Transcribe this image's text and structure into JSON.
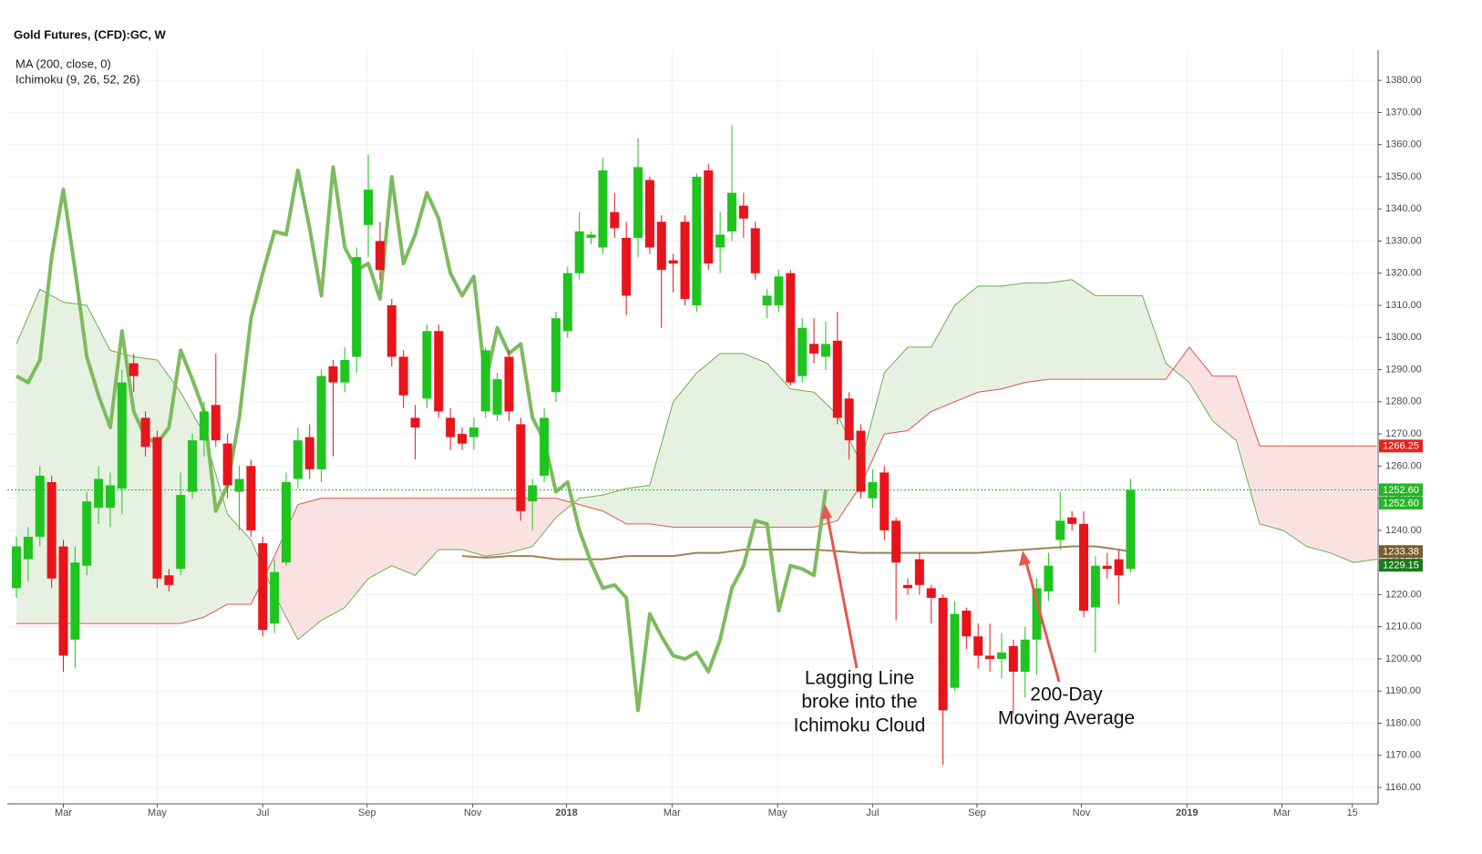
{
  "chart_data": {
    "type": "candlestick",
    "title": "Gold Futures, (CFD):GC, W",
    "indicators": [
      "MA (200, close, 0)",
      "Ichimoku (9, 26, 52, 26)"
    ],
    "up_color": "#1fc41f",
    "down_color": "#e8141b",
    "open": [
      1222,
      1231,
      1238,
      1255,
      1235,
      1206,
      1229,
      1247,
      1247,
      1253,
      1292,
      1275,
      1269,
      1226,
      1228,
      1252,
      1268,
      1279,
      1267,
      1252,
      1260,
      1236,
      1211,
      1230,
      1256,
      1269,
      1259,
      1291,
      1286,
      1294,
      1335,
      1330,
      1310,
      1294,
      1275,
      1281,
      1302,
      1275,
      1270,
      1269,
      1277,
      1276,
      1294,
      1273,
      1249,
      1257,
      1283,
      1302,
      1320,
      1331,
      1328,
      1339,
      1331,
      1331,
      1349,
      1336,
      1324,
      1336,
      1310,
      1352,
      1328,
      1333,
      1341,
      1334,
      1310,
      1310,
      1320,
      1288,
      1298,
      1294,
      1299,
      1281,
      1271,
      1250,
      1258,
      1243,
      1223,
      1231,
      1222,
      1219,
      1191,
      1215,
      1207,
      1201,
      1200,
      1204,
      1196,
      1206,
      1221,
      1237,
      1244,
      1242,
      1216,
      1229,
      1231,
      1228
    ],
    "high": [
      1238,
      1241,
      1260,
      1257,
      1237,
      1235,
      1252,
      1260,
      1258,
      1290,
      1295,
      1277,
      1271,
      1228,
      1258,
      1270,
      1280,
      1295,
      1270,
      1260,
      1262,
      1238,
      1231,
      1258,
      1272,
      1273,
      1290,
      1293,
      1297,
      1328,
      1357,
      1336,
      1312,
      1296,
      1279,
      1304,
      1304,
      1278,
      1272,
      1275,
      1297,
      1289,
      1296,
      1275,
      1256,
      1278,
      1308,
      1322,
      1339,
      1333,
      1356,
      1345,
      1336,
      1362,
      1350,
      1338,
      1326,
      1338,
      1351,
      1354,
      1339,
      1366,
      1345,
      1336,
      1315,
      1321,
      1321,
      1306,
      1306,
      1305,
      1308,
      1283,
      1273,
      1259,
      1260,
      1244,
      1225,
      1233,
      1223,
      1220,
      1218,
      1216,
      1211,
      1211,
      1208,
      1206,
      1210,
      1225,
      1233,
      1252,
      1246,
      1246,
      1232,
      1233,
      1234,
      1256
    ],
    "low": [
      1219,
      1224,
      1235,
      1222,
      1196,
      1197,
      1226,
      1242,
      1241,
      1245,
      1283,
      1263,
      1222,
      1221,
      1226,
      1250,
      1263,
      1266,
      1250,
      1240,
      1238,
      1207,
      1208,
      1229,
      1253,
      1256,
      1255,
      1263,
      1283,
      1289,
      1325,
      1318,
      1291,
      1278,
      1262,
      1278,
      1275,
      1265,
      1265,
      1265,
      1275,
      1274,
      1274,
      1243,
      1240,
      1255,
      1280,
      1300,
      1318,
      1329,
      1326,
      1331,
      1307,
      1325,
      1326,
      1303,
      1314,
      1310,
      1308,
      1321,
      1320,
      1330,
      1331,
      1318,
      1306,
      1308,
      1285,
      1286,
      1292,
      1290,
      1273,
      1262,
      1250,
      1247,
      1237,
      1212,
      1220,
      1220,
      1211,
      1167,
      1190,
      1203,
      1197,
      1196,
      1194,
      1183,
      1188,
      1195,
      1218,
      1234,
      1240,
      1213,
      1202,
      1225,
      1217,
      1227
    ],
    "close": [
      1235,
      1238,
      1257,
      1225,
      1201,
      1230,
      1249,
      1256,
      1254,
      1286,
      1288,
      1266,
      1225,
      1223,
      1251,
      1268,
      1277,
      1268,
      1254,
      1256,
      1240,
      1209,
      1227,
      1255,
      1268,
      1259,
      1288,
      1286,
      1293,
      1325,
      1346,
      1321,
      1294,
      1282,
      1272,
      1302,
      1277,
      1269,
      1267,
      1272,
      1296,
      1287,
      1277,
      1246,
      1254,
      1275,
      1306,
      1320,
      1333,
      1332,
      1352,
      1334,
      1313,
      1353,
      1328,
      1321,
      1323,
      1312,
      1350,
      1323,
      1332,
      1345,
      1337,
      1320,
      1313,
      1319,
      1286,
      1303,
      1295,
      1298,
      1275,
      1268,
      1252,
      1255,
      1240,
      1230,
      1222,
      1223,
      1219,
      1184,
      1214,
      1207,
      1201,
      1200,
      1202,
      1196,
      1206,
      1222,
      1229,
      1243,
      1242,
      1215,
      1229,
      1228,
      1226,
      1252.6
    ],
    "xlim": [
      -0.78,
      116.1
    ],
    "xticks": [
      {
        "value": 4.0,
        "label": "Mar"
      },
      {
        "value": 12.0,
        "label": "May"
      },
      {
        "value": 21.0,
        "label": "Jul"
      },
      {
        "value": 29.9,
        "label": "Sep"
      },
      {
        "value": 38.9,
        "label": "Nov"
      },
      {
        "value": 46.9,
        "label": "2018"
      },
      {
        "value": 55.9,
        "label": "Mar"
      },
      {
        "value": 64.9,
        "label": "May"
      },
      {
        "value": 73.0,
        "label": "Jul"
      },
      {
        "value": 81.9,
        "label": "Sep"
      },
      {
        "value": 90.8,
        "label": "Nov"
      },
      {
        "value": 99.8,
        "label": "2019"
      },
      {
        "value": 107.9,
        "label": "Mar"
      },
      {
        "value": 113.9,
        "label": "15"
      }
    ],
    "ylim": [
      1154.9,
      1389.4
    ],
    "yticks": [
      {
        "value": 1160,
        "label": "1160.00"
      },
      {
        "value": 1170,
        "label": "1170.00"
      },
      {
        "value": 1180,
        "label": "1180.00"
      },
      {
        "value": 1190,
        "label": "1190.00"
      },
      {
        "value": 1200,
        "label": "1200.00"
      },
      {
        "value": 1210,
        "label": "1210.00"
      },
      {
        "value": 1220,
        "label": "1220.00"
      },
      {
        "value": 1230,
        "label": "1230.00"
      },
      {
        "value": 1240,
        "label": "1240.00"
      },
      {
        "value": 1250,
        "label": "1250.00"
      },
      {
        "value": 1260,
        "label": "1260.00"
      },
      {
        "value": 1270,
        "label": "1270.00"
      },
      {
        "value": 1280,
        "label": "1280.00"
      },
      {
        "value": 1290,
        "label": "1290.00"
      },
      {
        "value": 1300,
        "label": "1300.00"
      },
      {
        "value": 1310,
        "label": "1310.00"
      },
      {
        "value": 1320,
        "label": "1320.00"
      },
      {
        "value": 1330,
        "label": "1330.00"
      },
      {
        "value": 1340,
        "label": "1340.00"
      },
      {
        "value": 1350,
        "label": "1350.00"
      },
      {
        "value": 1360,
        "label": "1360.00"
      },
      {
        "value": 1370,
        "label": "1370.00"
      },
      {
        "value": 1380,
        "label": "1380.00"
      }
    ],
    "grid": true,
    "last_price_line": true,
    "lagging_line": {
      "shift": 26,
      "color": "#7dbb5e"
    },
    "moving_average": {
      "color": "#a0825a",
      "x": [
        38,
        40,
        42,
        44,
        46,
        48,
        50,
        52,
        54,
        56,
        58,
        60,
        62,
        64,
        66,
        68,
        70,
        72,
        74,
        76,
        78,
        80,
        82,
        84,
        86,
        88,
        90,
        92,
        94,
        95
      ],
      "values": [
        1232,
        1231.5,
        1232,
        1232,
        1231,
        1231,
        1231,
        1232,
        1232,
        1232,
        1233,
        1233,
        1234,
        1234,
        1234,
        1234,
        1233.5,
        1233,
        1233,
        1233,
        1233,
        1233,
        1233,
        1233.5,
        1234,
        1234.5,
        1235,
        1235,
        1234,
        1233.38
      ]
    },
    "cloud": {
      "span_a_color": "#6ab04c",
      "span_b_color": "#e0554f",
      "bull_fill": "#e6f1e2",
      "bear_fill": "#fbe2e2",
      "x": [
        0,
        2,
        4,
        6,
        8,
        10,
        12,
        14,
        16,
        18,
        20,
        22,
        24,
        26,
        28,
        30,
        32,
        34,
        36,
        38,
        40,
        42,
        44,
        46,
        48,
        50,
        52,
        54,
        56,
        58,
        60,
        62,
        64,
        66,
        68,
        70,
        72,
        74,
        76,
        78,
        80,
        82,
        84,
        86,
        88,
        90,
        92,
        94,
        96,
        98,
        100,
        102,
        104,
        106,
        108,
        110,
        112,
        114,
        116
      ],
      "span_a": [
        1298,
        1315,
        1311,
        1310,
        1296,
        1294,
        1293,
        1283,
        1270,
        1245,
        1237,
        1220,
        1206,
        1212,
        1216,
        1225,
        1229,
        1226,
        1234,
        1234,
        1232,
        1233,
        1235,
        1244,
        1250,
        1251,
        1253,
        1254,
        1280,
        1289,
        1295,
        1295,
        1292,
        1284,
        1283,
        1276,
        1261,
        1289,
        1297,
        1297,
        1310,
        1316,
        1316,
        1317,
        1317,
        1318,
        1313,
        1313,
        1313,
        1292,
        1286,
        1274,
        1268,
        1242,
        1240,
        1235,
        1233,
        1230,
        1231
      ],
      "span_b": [
        1211,
        1211,
        1211,
        1211,
        1211,
        1211,
        1211,
        1211,
        1213,
        1217,
        1217,
        1232,
        1248,
        1250,
        1250,
        1250,
        1250,
        1250,
        1250,
        1250,
        1250,
        1250,
        1250,
        1250,
        1248,
        1246,
        1242,
        1242,
        1241,
        1241,
        1241,
        1241,
        1241,
        1241,
        1241,
        1243,
        1254,
        1270,
        1271,
        1277,
        1280,
        1283,
        1284,
        1286,
        1287,
        1287,
        1287,
        1287,
        1287,
        1287,
        1297,
        1288,
        1288,
        1266.25,
        1266.25,
        1266.25,
        1266.25,
        1266.25,
        1266.25
      ]
    },
    "price_tags": [
      {
        "value": 1266.25,
        "label": "1266.25",
        "color": "#e8211d"
      },
      {
        "value": 1252.6,
        "label": "1252.60",
        "color": "#25b525"
      },
      {
        "value": 1252.6,
        "label": "1252.60",
        "color": "#25b525"
      },
      {
        "value": 1233.38,
        "label": "1233.38",
        "color": "#7b5a2e"
      },
      {
        "value": 1229.15,
        "label": "1229.15",
        "color": "#1a7a1a"
      }
    ],
    "annotations": [
      {
        "text": [
          "Lagging Line",
          "broke into the",
          "Ichimoku Cloud"
        ]
      },
      {
        "text": [
          "200-Day",
          "Moving Average"
        ]
      }
    ]
  }
}
